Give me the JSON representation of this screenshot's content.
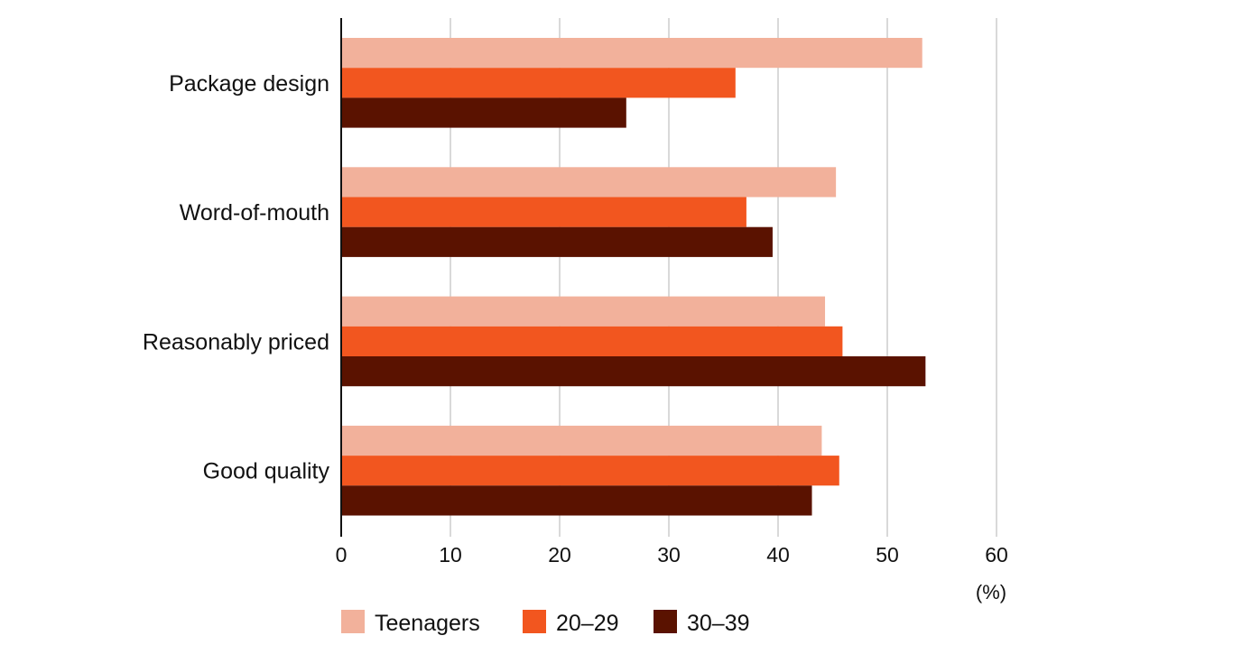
{
  "chart_data": {
    "type": "bar",
    "orientation": "horizontal",
    "categories": [
      "Package design",
      "Word-of-mouth",
      "Reasonably priced",
      "Good quality"
    ],
    "series": [
      {
        "name": "Teenagers",
        "color": "#F2B19B",
        "values": [
          53.2,
          45.3,
          44.3,
          44.0
        ]
      },
      {
        "name": "20–29",
        "color": "#F2561F",
        "values": [
          36.1,
          37.1,
          45.9,
          45.6
        ]
      },
      {
        "name": "30–39",
        "color": "#5A1200",
        "values": [
          26.1,
          39.5,
          53.5,
          43.1
        ]
      }
    ],
    "xlim": [
      0,
      60
    ],
    "xticks": [
      "0",
      "10",
      "20",
      "30",
      "40",
      "50",
      "60"
    ],
    "unit_label": "(%)",
    "grid": "vertical",
    "legend_position": "bottom"
  }
}
